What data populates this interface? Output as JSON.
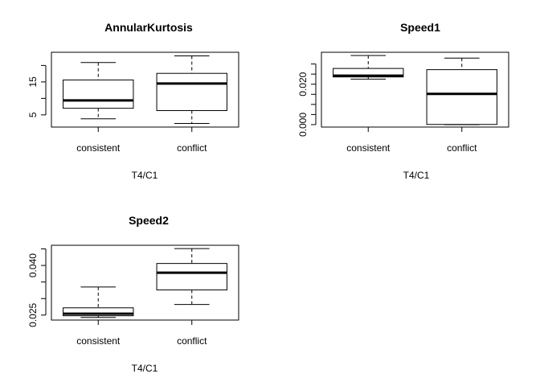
{
  "chart_data": [
    {
      "type": "box",
      "title": "AnnularKurtosis",
      "xlabel": "T4/C1",
      "ylabel": "",
      "categories": [
        "consistent",
        "conflict"
      ],
      "ylim": [
        1.3,
        24
      ],
      "yticks": [
        5,
        10,
        15,
        20
      ],
      "yticklabels": [
        "5",
        "",
        "15",
        ""
      ],
      "boxes": [
        {
          "min": 3.8,
          "q1": 7.0,
          "median": 9.4,
          "q3": 15.6,
          "max": 20.9
        },
        {
          "min": 2.4,
          "q1": 6.3,
          "median": 14.5,
          "q3": 17.6,
          "max": 22.9
        }
      ]
    },
    {
      "type": "box",
      "title": "Speed1",
      "xlabel": "T4/C1",
      "ylabel": "",
      "categories": [
        "consistent",
        "conflict"
      ],
      "ylim": [
        -0.0012,
        0.0358
      ],
      "yticks": [
        0.0,
        0.005,
        0.01,
        0.015,
        0.02,
        0.025,
        0.03
      ],
      "yticklabels": [
        "0.000",
        "",
        "",
        "",
        "0.020",
        "",
        ""
      ],
      "boxes": [
        {
          "min": 0.0225,
          "q1": 0.0236,
          "median": 0.0242,
          "q3": 0.0278,
          "max": 0.0342
        },
        {
          "min": 0.0,
          "q1": 0.0001,
          "median": 0.0152,
          "q3": 0.0272,
          "max": 0.0329
        }
      ]
    },
    {
      "type": "box",
      "title": "Speed2",
      "xlabel": "T4/C1",
      "ylabel": "",
      "categories": [
        "consistent",
        "conflict"
      ],
      "ylim": [
        0.0235,
        0.0461
      ],
      "yticks": [
        0.025,
        0.03,
        0.035,
        0.04,
        0.045
      ],
      "yticklabels": [
        "0.025",
        "",
        "",
        "0.040",
        ""
      ],
      "boxes": [
        {
          "min": 0.0243,
          "q1": 0.0248,
          "median": 0.0254,
          "q3": 0.0272,
          "max": 0.0335
        },
        {
          "min": 0.0282,
          "q1": 0.0326,
          "median": 0.0378,
          "q3": 0.0406,
          "max": 0.0451
        }
      ]
    }
  ]
}
